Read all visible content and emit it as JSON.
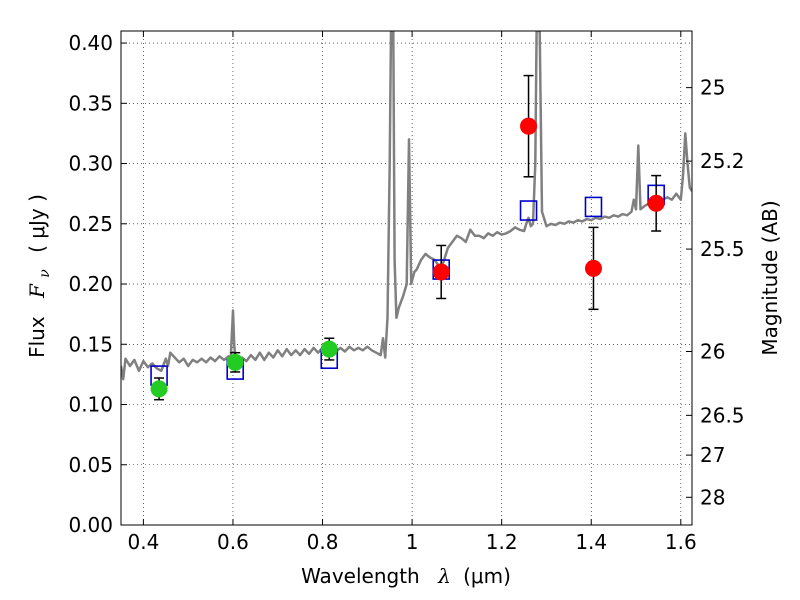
{
  "chart_data": {
    "type": "scatter",
    "title": "",
    "xlabel_prefix": "Wavelength",
    "xlabel_symbol": "λ",
    "xlabel_units": "(μm)",
    "ylabel_prefix": "Flux",
    "ylabel_symbol": "F",
    "ylabel_subscript": "ν",
    "ylabel_units": "( μJy )",
    "y2label": "Magnitude (AB)",
    "xlim": [
      0.35,
      1.625
    ],
    "ylim": [
      0.0,
      0.41
    ],
    "grid": true,
    "grid_style": "dotted",
    "xticks": [
      {
        "v": 0.4,
        "label": "0.4"
      },
      {
        "v": 0.6,
        "label": "0.6"
      },
      {
        "v": 0.8,
        "label": "0.8"
      },
      {
        "v": 1.0,
        "label": "1"
      },
      {
        "v": 1.2,
        "label": "1.2"
      },
      {
        "v": 1.4,
        "label": "1.4"
      },
      {
        "v": 1.6,
        "label": "1.6"
      }
    ],
    "yticks": [
      {
        "v": 0.0,
        "label": "0.00"
      },
      {
        "v": 0.05,
        "label": "0.05"
      },
      {
        "v": 0.1,
        "label": "0.10"
      },
      {
        "v": 0.15,
        "label": "0.15"
      },
      {
        "v": 0.2,
        "label": "0.20"
      },
      {
        "v": 0.25,
        "label": "0.25"
      },
      {
        "v": 0.3,
        "label": "0.30"
      },
      {
        "v": 0.35,
        "label": "0.35"
      },
      {
        "v": 0.4,
        "label": "0.40"
      }
    ],
    "y2ticks": [
      {
        "flux": 0.363,
        "label": "25"
      },
      {
        "flux": 0.302,
        "label": "25.2"
      },
      {
        "flux": 0.229,
        "label": "25.5"
      },
      {
        "flux": 0.144,
        "label": "26"
      },
      {
        "flux": 0.091,
        "label": "26.5"
      },
      {
        "flux": 0.058,
        "label": "27"
      },
      {
        "flux": 0.023,
        "label": "28"
      }
    ],
    "series": [
      {
        "kind": "spectrum",
        "color": "#808080",
        "points": [
          [
            0.35,
            0.132
          ],
          [
            0.355,
            0.121
          ],
          [
            0.36,
            0.138
          ],
          [
            0.37,
            0.132
          ],
          [
            0.38,
            0.137
          ],
          [
            0.39,
            0.128
          ],
          [
            0.4,
            0.136
          ],
          [
            0.41,
            0.131
          ],
          [
            0.42,
            0.134
          ],
          [
            0.43,
            0.13
          ],
          [
            0.44,
            0.128
          ],
          [
            0.45,
            0.138
          ],
          [
            0.455,
            0.132
          ],
          [
            0.46,
            0.143
          ],
          [
            0.47,
            0.139
          ],
          [
            0.48,
            0.135
          ],
          [
            0.49,
            0.138
          ],
          [
            0.5,
            0.132
          ],
          [
            0.51,
            0.137
          ],
          [
            0.52,
            0.135
          ],
          [
            0.53,
            0.138
          ],
          [
            0.54,
            0.135
          ],
          [
            0.55,
            0.139
          ],
          [
            0.56,
            0.136
          ],
          [
            0.57,
            0.14
          ],
          [
            0.58,
            0.137
          ],
          [
            0.59,
            0.14
          ],
          [
            0.595,
            0.138
          ],
          [
            0.6,
            0.178
          ],
          [
            0.603,
            0.148
          ],
          [
            0.607,
            0.136
          ],
          [
            0.62,
            0.139
          ],
          [
            0.63,
            0.136
          ],
          [
            0.64,
            0.141
          ],
          [
            0.65,
            0.137
          ],
          [
            0.66,
            0.143
          ],
          [
            0.67,
            0.137
          ],
          [
            0.68,
            0.143
          ],
          [
            0.69,
            0.139
          ],
          [
            0.7,
            0.145
          ],
          [
            0.71,
            0.14
          ],
          [
            0.72,
            0.146
          ],
          [
            0.73,
            0.141
          ],
          [
            0.74,
            0.145
          ],
          [
            0.75,
            0.141
          ],
          [
            0.76,
            0.146
          ],
          [
            0.77,
            0.142
          ],
          [
            0.78,
            0.147
          ],
          [
            0.79,
            0.143
          ],
          [
            0.8,
            0.147
          ],
          [
            0.81,
            0.144
          ],
          [
            0.82,
            0.148
          ],
          [
            0.83,
            0.144
          ],
          [
            0.84,
            0.147
          ],
          [
            0.85,
            0.144
          ],
          [
            0.86,
            0.148
          ],
          [
            0.87,
            0.145
          ],
          [
            0.88,
            0.147
          ],
          [
            0.89,
            0.145
          ],
          [
            0.9,
            0.148
          ],
          [
            0.91,
            0.145
          ],
          [
            0.92,
            0.143
          ],
          [
            0.93,
            0.141
          ],
          [
            0.935,
            0.155
          ],
          [
            0.94,
            0.139
          ],
          [
            0.945,
            0.172
          ],
          [
            0.95,
            0.3
          ],
          [
            0.953,
            0.41
          ],
          [
            0.958,
            0.41
          ],
          [
            0.961,
            0.22
          ],
          [
            0.965,
            0.172
          ],
          [
            0.97,
            0.18
          ],
          [
            0.98,
            0.19
          ],
          [
            0.988,
            0.2
          ],
          [
            0.993,
            0.32
          ],
          [
            0.998,
            0.2
          ],
          [
            1.005,
            0.21
          ],
          [
            1.01,
            0.212
          ],
          [
            1.02,
            0.22
          ],
          [
            1.03,
            0.225
          ],
          [
            1.04,
            0.222
          ],
          [
            1.05,
            0.22
          ],
          [
            1.06,
            0.215
          ],
          [
            1.07,
            0.218
          ],
          [
            1.08,
            0.23
          ],
          [
            1.09,
            0.235
          ],
          [
            1.1,
            0.24
          ],
          [
            1.11,
            0.238
          ],
          [
            1.12,
            0.235
          ],
          [
            1.13,
            0.245
          ],
          [
            1.14,
            0.24
          ],
          [
            1.15,
            0.24
          ],
          [
            1.16,
            0.238
          ],
          [
            1.17,
            0.242
          ],
          [
            1.18,
            0.24
          ],
          [
            1.19,
            0.243
          ],
          [
            1.2,
            0.241
          ],
          [
            1.21,
            0.242
          ],
          [
            1.22,
            0.244
          ],
          [
            1.23,
            0.247
          ],
          [
            1.24,
            0.245
          ],
          [
            1.25,
            0.244
          ],
          [
            1.255,
            0.25
          ],
          [
            1.26,
            0.255
          ],
          [
            1.265,
            0.248
          ],
          [
            1.27,
            0.25
          ],
          [
            1.275,
            0.3
          ],
          [
            1.278,
            0.41
          ],
          [
            1.285,
            0.41
          ],
          [
            1.29,
            0.26
          ],
          [
            1.3,
            0.248
          ],
          [
            1.31,
            0.25
          ],
          [
            1.32,
            0.249
          ],
          [
            1.33,
            0.251
          ],
          [
            1.34,
            0.25
          ],
          [
            1.35,
            0.252
          ],
          [
            1.36,
            0.251
          ],
          [
            1.37,
            0.253
          ],
          [
            1.38,
            0.252
          ],
          [
            1.39,
            0.254
          ],
          [
            1.4,
            0.253
          ],
          [
            1.41,
            0.255
          ],
          [
            1.42,
            0.254
          ],
          [
            1.43,
            0.256
          ],
          [
            1.44,
            0.255
          ],
          [
            1.45,
            0.257
          ],
          [
            1.46,
            0.256
          ],
          [
            1.47,
            0.258
          ],
          [
            1.48,
            0.257
          ],
          [
            1.49,
            0.26
          ],
          [
            1.495,
            0.27
          ],
          [
            1.5,
            0.262
          ],
          [
            1.505,
            0.315
          ],
          [
            1.51,
            0.262
          ],
          [
            1.52,
            0.265
          ],
          [
            1.53,
            0.267
          ],
          [
            1.54,
            0.268
          ],
          [
            1.55,
            0.27
          ],
          [
            1.56,
            0.27
          ],
          [
            1.57,
            0.272
          ],
          [
            1.58,
            0.27
          ],
          [
            1.59,
            0.275
          ],
          [
            1.6,
            0.27
          ],
          [
            1.605,
            0.29
          ],
          [
            1.61,
            0.325
          ],
          [
            1.615,
            0.3
          ],
          [
            1.62,
            0.28
          ],
          [
            1.625,
            0.277
          ]
        ]
      },
      {
        "kind": "squares",
        "color": "#0000cc",
        "points": [
          [
            0.435,
            0.124
          ],
          [
            0.605,
            0.129
          ],
          [
            0.815,
            0.138
          ],
          [
            1.065,
            0.212
          ],
          [
            1.26,
            0.261
          ],
          [
            1.405,
            0.264
          ],
          [
            1.545,
            0.274
          ]
        ]
      },
      {
        "kind": "circles",
        "color": "#22cc22",
        "points": [
          {
            "x": 0.435,
            "y": 0.113,
            "err": 0.009
          },
          {
            "x": 0.605,
            "y": 0.135,
            "err": 0.008
          },
          {
            "x": 0.815,
            "y": 0.146,
            "err": 0.009
          }
        ]
      },
      {
        "kind": "circles",
        "color": "#ff0000",
        "points": [
          {
            "x": 1.065,
            "y": 0.21,
            "err": 0.022
          },
          {
            "x": 1.26,
            "y": 0.331,
            "err": 0.042
          },
          {
            "x": 1.405,
            "y": 0.213,
            "err": 0.034
          },
          {
            "x": 1.545,
            "y": 0.267,
            "err": 0.023
          }
        ]
      }
    ]
  }
}
